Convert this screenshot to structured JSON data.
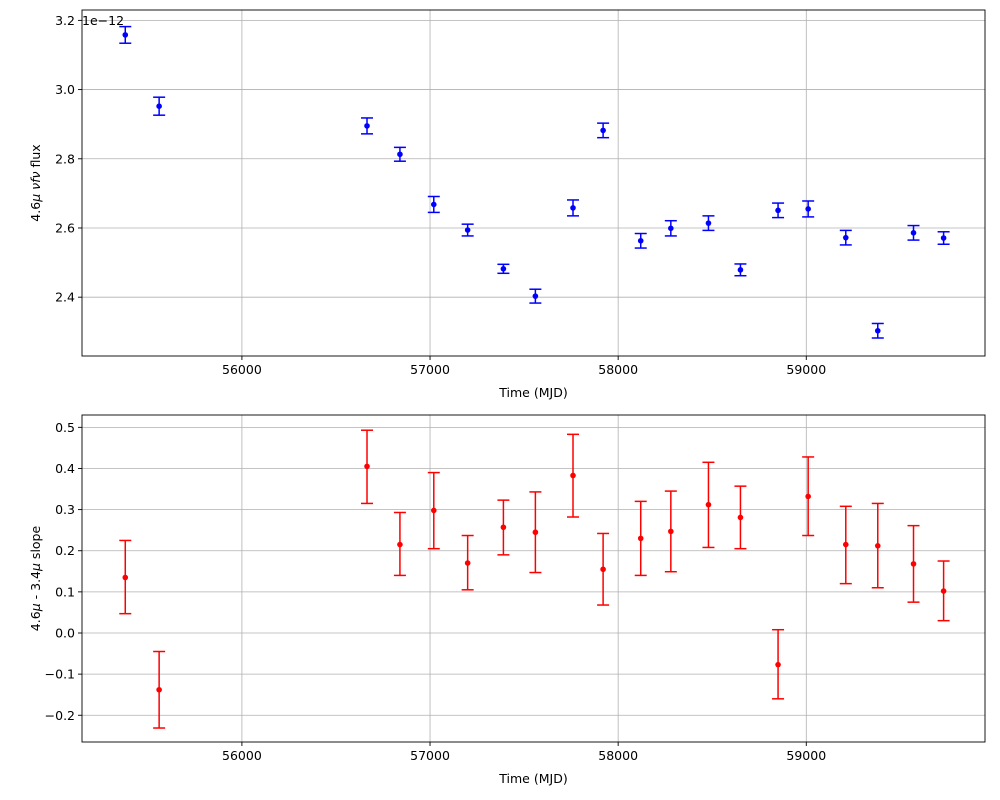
{
  "chart_data": [
    {
      "type": "scatter",
      "error_bars": true,
      "color": "#0000ff",
      "xlabel": "Time (MJD)",
      "ylabel_parts": [
        "4.6",
        "μ",
        " ",
        "νfν",
        " flux"
      ],
      "offset_text": "1e−12",
      "y_scale_note": "values shown in units of 1e-12",
      "xlim": [
        55150,
        59950
      ],
      "ylim": [
        2.23,
        3.23
      ],
      "xticks": [
        56000,
        57000,
        58000,
        59000
      ],
      "xtick_labels": [
        "56000",
        "57000",
        "58000",
        "59000"
      ],
      "yticks": [
        2.4,
        2.6,
        2.8,
        3.0,
        3.2
      ],
      "ytick_labels": [
        "2.4",
        "2.6",
        "2.8",
        "3.0",
        "3.2"
      ],
      "grid": true,
      "points": [
        {
          "x": 55380,
          "y": 3.158,
          "err": 0.024
        },
        {
          "x": 55560,
          "y": 2.952,
          "err": 0.026
        },
        {
          "x": 56665,
          "y": 2.895,
          "err": 0.023
        },
        {
          "x": 56840,
          "y": 2.813,
          "err": 0.02
        },
        {
          "x": 57020,
          "y": 2.668,
          "err": 0.023
        },
        {
          "x": 57200,
          "y": 2.594,
          "err": 0.017
        },
        {
          "x": 57390,
          "y": 2.482,
          "err": 0.013
        },
        {
          "x": 57560,
          "y": 2.403,
          "err": 0.02
        },
        {
          "x": 57760,
          "y": 2.658,
          "err": 0.023
        },
        {
          "x": 57920,
          "y": 2.882,
          "err": 0.021
        },
        {
          "x": 58120,
          "y": 2.563,
          "err": 0.021
        },
        {
          "x": 58280,
          "y": 2.599,
          "err": 0.022
        },
        {
          "x": 58480,
          "y": 2.614,
          "err": 0.021
        },
        {
          "x": 58650,
          "y": 2.479,
          "err": 0.017
        },
        {
          "x": 58850,
          "y": 2.651,
          "err": 0.021
        },
        {
          "x": 59010,
          "y": 2.655,
          "err": 0.023
        },
        {
          "x": 59210,
          "y": 2.572,
          "err": 0.021
        },
        {
          "x": 59380,
          "y": 2.303,
          "err": 0.021
        },
        {
          "x": 59570,
          "y": 2.586,
          "err": 0.021
        },
        {
          "x": 59730,
          "y": 2.571,
          "err": 0.018
        }
      ]
    },
    {
      "type": "scatter",
      "error_bars": true,
      "color": "#ff0000",
      "xlabel": "Time (MJD)",
      "ylabel_parts": [
        "4.6",
        "μ",
        " - 3.4",
        "μ",
        " slope"
      ],
      "xlim": [
        55150,
        59950
      ],
      "ylim": [
        -0.265,
        0.53
      ],
      "xticks": [
        56000,
        57000,
        58000,
        59000
      ],
      "xtick_labels": [
        "56000",
        "57000",
        "58000",
        "59000"
      ],
      "yticks": [
        -0.2,
        -0.1,
        0.0,
        0.1,
        0.2,
        0.3,
        0.4,
        0.5
      ],
      "ytick_labels": [
        "−0.2",
        "−0.1",
        "0.0",
        "0.1",
        "0.2",
        "0.3",
        "0.4",
        "0.5"
      ],
      "grid": true,
      "points": [
        {
          "x": 55380,
          "y": 0.135,
          "lo": 0.047,
          "hi": 0.225
        },
        {
          "x": 55560,
          "y": -0.138,
          "lo": -0.231,
          "hi": -0.045
        },
        {
          "x": 56665,
          "y": 0.405,
          "lo": 0.315,
          "hi": 0.493
        },
        {
          "x": 56840,
          "y": 0.215,
          "lo": 0.14,
          "hi": 0.293
        },
        {
          "x": 57020,
          "y": 0.298,
          "lo": 0.205,
          "hi": 0.39
        },
        {
          "x": 57200,
          "y": 0.17,
          "lo": 0.105,
          "hi": 0.237
        },
        {
          "x": 57390,
          "y": 0.257,
          "lo": 0.19,
          "hi": 0.323
        },
        {
          "x": 57560,
          "y": 0.245,
          "lo": 0.147,
          "hi": 0.343
        },
        {
          "x": 57760,
          "y": 0.383,
          "lo": 0.282,
          "hi": 0.483
        },
        {
          "x": 57920,
          "y": 0.155,
          "lo": 0.068,
          "hi": 0.242
        },
        {
          "x": 58120,
          "y": 0.23,
          "lo": 0.14,
          "hi": 0.32
        },
        {
          "x": 58280,
          "y": 0.247,
          "lo": 0.149,
          "hi": 0.345
        },
        {
          "x": 58480,
          "y": 0.312,
          "lo": 0.208,
          "hi": 0.415
        },
        {
          "x": 58650,
          "y": 0.281,
          "lo": 0.205,
          "hi": 0.357
        },
        {
          "x": 58850,
          "y": -0.077,
          "lo": -0.16,
          "hi": 0.008
        },
        {
          "x": 59010,
          "y": 0.332,
          "lo": 0.237,
          "hi": 0.428
        },
        {
          "x": 59210,
          "y": 0.215,
          "lo": 0.12,
          "hi": 0.308
        },
        {
          "x": 59380,
          "y": 0.212,
          "lo": 0.11,
          "hi": 0.315
        },
        {
          "x": 59570,
          "y": 0.168,
          "lo": 0.075,
          "hi": 0.261
        },
        {
          "x": 59730,
          "y": 0.102,
          "lo": 0.03,
          "hi": 0.175
        }
      ]
    }
  ]
}
